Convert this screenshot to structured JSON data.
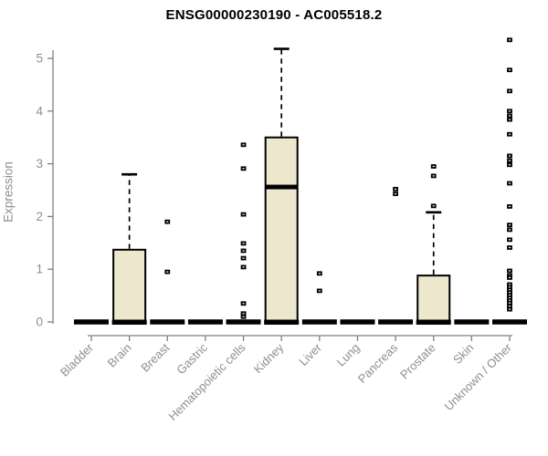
{
  "chart_data": {
    "type": "boxplot",
    "title": "ENSG00000230190 - AC005518.2",
    "ylabel": "Expression",
    "xlabel": "",
    "ylim": [
      0,
      5.4
    ],
    "yticks": [
      0,
      1,
      2,
      3,
      4,
      5
    ],
    "grid": false,
    "legend": "none",
    "categories": [
      "Bladder",
      "Brain",
      "Breast",
      "Gastric",
      "Hematopoietic cells",
      "Kidney",
      "Liver",
      "Lung",
      "Pancreas",
      "Prostate",
      "Skin",
      "Unknown / Other"
    ],
    "boxes": [
      {
        "category": "Bladder",
        "min": 0,
        "q1": 0,
        "median": 0,
        "q3": 0,
        "max": 0,
        "outliers": []
      },
      {
        "category": "Brain",
        "min": 0,
        "q1": 0,
        "median": 0,
        "q3": 1.37,
        "max": 2.8,
        "outliers": []
      },
      {
        "category": "Breast",
        "min": 0,
        "q1": 0,
        "median": 0,
        "q3": 0,
        "max": 0,
        "outliers": [
          1.9,
          0.95
        ]
      },
      {
        "category": "Gastric",
        "min": 0,
        "q1": 0,
        "median": 0,
        "q3": 0,
        "max": 0,
        "outliers": []
      },
      {
        "category": "Hematopoietic cells",
        "min": 0,
        "q1": 0,
        "median": 0,
        "q3": 0,
        "max": 0,
        "outliers": [
          3.36,
          2.91,
          2.04,
          1.49,
          1.35,
          1.21,
          1.04,
          0.35,
          0.16,
          0.1
        ]
      },
      {
        "category": "Kidney",
        "min": 0,
        "q1": 0,
        "median": 2.56,
        "q3": 3.5,
        "max": 5.18,
        "outliers": []
      },
      {
        "category": "Liver",
        "min": 0,
        "q1": 0,
        "median": 0,
        "q3": 0,
        "max": 0,
        "outliers": [
          0.92,
          0.59
        ]
      },
      {
        "category": "Lung",
        "min": 0,
        "q1": 0,
        "median": 0,
        "q3": 0,
        "max": 0,
        "outliers": []
      },
      {
        "category": "Pancreas",
        "min": 0,
        "q1": 0,
        "median": 0,
        "q3": 0,
        "max": 0,
        "outliers": [
          2.52,
          2.43
        ]
      },
      {
        "category": "Prostate",
        "min": 0,
        "q1": 0,
        "median": 0,
        "q3": 0.88,
        "max": 2.08,
        "outliers": [
          2.95,
          2.77,
          2.2
        ]
      },
      {
        "category": "Skin",
        "min": 0,
        "q1": 0,
        "median": 0,
        "q3": 0,
        "max": 0,
        "outliers": []
      },
      {
        "category": "Unknown / Other",
        "min": 0,
        "q1": 0,
        "median": 0,
        "q3": 0,
        "max": 0,
        "outliers": [
          5.35,
          4.78,
          4.38,
          4.0,
          3.91,
          3.84,
          3.56,
          3.15,
          3.06,
          2.98,
          2.63,
          2.19,
          1.84,
          1.75,
          1.56,
          1.41,
          0.97,
          0.88,
          0.84,
          0.71,
          0.66,
          0.61,
          0.56,
          0.51,
          0.46,
          0.41,
          0.36,
          0.3,
          0.24
        ]
      }
    ],
    "colors": {
      "box_fill": "#EDE8CD",
      "box_border": "#000000",
      "median": "#000000",
      "axis": "#7f7f7f",
      "tick_label": "#8e8e8e",
      "title": "#000000",
      "background": "#ffffff"
    }
  }
}
